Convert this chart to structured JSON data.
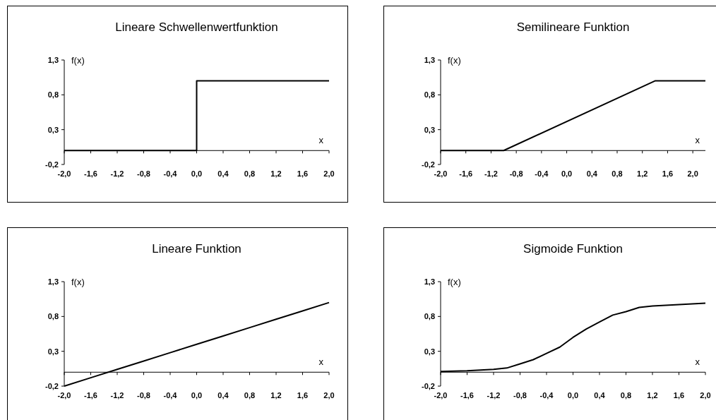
{
  "chart_data": [
    {
      "type": "line",
      "title": "Lineare Schwellenwertfunktion",
      "xlabel": "x",
      "ylabel": "f(x)",
      "xlim": [
        -2,
        2
      ],
      "ylim": [
        -0.2,
        1.3
      ],
      "xticks": [
        {
          "value": -2,
          "label": "-2,0"
        },
        {
          "value": -1.6,
          "label": "-1,6"
        },
        {
          "value": -1.2,
          "label": "-1,2"
        },
        {
          "value": -0.8,
          "label": "-0,8"
        },
        {
          "value": -0.4,
          "label": "-0,4"
        },
        {
          "value": 0,
          "label": "0,0"
        },
        {
          "value": 0.4,
          "label": "0,4"
        },
        {
          "value": 0.8,
          "label": "0,8"
        },
        {
          "value": 1.2,
          "label": "1,2"
        },
        {
          "value": 1.6,
          "label": "1,6"
        },
        {
          "value": 2,
          "label": "2,0"
        }
      ],
      "yticks": [
        {
          "value": -0.2,
          "label": "-0,2"
        },
        {
          "value": 0.3,
          "label": "0,3"
        },
        {
          "value": 0.8,
          "label": "0,8"
        },
        {
          "value": 1.3,
          "label": "1,3"
        }
      ],
      "series": [
        {
          "color": "#000000",
          "x": [
            -2,
            0,
            0,
            2
          ],
          "values": [
            0,
            0,
            1,
            1
          ]
        }
      ]
    },
    {
      "type": "line",
      "title": "Semilineare Funktion",
      "xlabel": "x",
      "ylabel": "f(x)",
      "xlim": [
        -2,
        2.2
      ],
      "ylim": [
        -0.2,
        1.3
      ],
      "xticks": [
        {
          "value": -2,
          "label": "-2,0"
        },
        {
          "value": -1.6,
          "label": "-1,6"
        },
        {
          "value": -1.2,
          "label": "-1,2"
        },
        {
          "value": -0.8,
          "label": "-0,8"
        },
        {
          "value": -0.4,
          "label": "-0,4"
        },
        {
          "value": 0,
          "label": "0,0"
        },
        {
          "value": 0.4,
          "label": "0,4"
        },
        {
          "value": 0.8,
          "label": "0,8"
        },
        {
          "value": 1.2,
          "label": "1,2"
        },
        {
          "value": 1.6,
          "label": "1,6"
        },
        {
          "value": 2,
          "label": "2,0"
        }
      ],
      "yticks": [
        {
          "value": -0.2,
          "label": "-0,2"
        },
        {
          "value": 0.3,
          "label": "0,3"
        },
        {
          "value": 0.8,
          "label": "0,8"
        },
        {
          "value": 1.3,
          "label": "1,3"
        }
      ],
      "series": [
        {
          "color": "#000000",
          "x": [
            -2,
            -1,
            1.4,
            2.2
          ],
          "values": [
            0,
            0,
            1,
            1
          ]
        }
      ]
    },
    {
      "type": "line",
      "title": "Lineare Funktion",
      "xlabel": "x",
      "ylabel": "f(x)",
      "xlim": [
        -2,
        2
      ],
      "ylim": [
        -0.2,
        1.3
      ],
      "xticks": [
        {
          "value": -2,
          "label": "-2,0"
        },
        {
          "value": -1.6,
          "label": "-1,6"
        },
        {
          "value": -1.2,
          "label": "-1,2"
        },
        {
          "value": -0.8,
          "label": "-0,8"
        },
        {
          "value": -0.4,
          "label": "-0,4"
        },
        {
          "value": 0,
          "label": "0,0"
        },
        {
          "value": 0.4,
          "label": "0,4"
        },
        {
          "value": 0.8,
          "label": "0,8"
        },
        {
          "value": 1.2,
          "label": "1,2"
        },
        {
          "value": 1.6,
          "label": "1,6"
        },
        {
          "value": 2,
          "label": "2,0"
        }
      ],
      "yticks": [
        {
          "value": -0.2,
          "label": "-0,2"
        },
        {
          "value": 0.3,
          "label": "0,3"
        },
        {
          "value": 0.8,
          "label": "0,8"
        },
        {
          "value": 1.3,
          "label": "1,3"
        }
      ],
      "series": [
        {
          "color": "#000000",
          "x": [
            -2,
            -1.6,
            -1.2,
            -0.8,
            -0.4,
            0,
            0.4,
            0.8,
            1.2,
            1.6,
            2
          ],
          "values": [
            -0.2,
            -0.08,
            0.04,
            0.16,
            0.28,
            0.4,
            0.52,
            0.64,
            0.76,
            0.88,
            1.0
          ]
        }
      ]
    },
    {
      "type": "line",
      "title": "Sigmoide Funktion",
      "xlabel": "x",
      "ylabel": "f(x)",
      "xlim": [
        -2,
        2
      ],
      "ylim": [
        -0.2,
        1.3
      ],
      "xticks": [
        {
          "value": -2,
          "label": "-2,0"
        },
        {
          "value": -1.6,
          "label": "-1,6"
        },
        {
          "value": -1.2,
          "label": "-1,2"
        },
        {
          "value": -0.8,
          "label": "-0,8"
        },
        {
          "value": -0.4,
          "label": "-0,4"
        },
        {
          "value": 0,
          "label": "0,0"
        },
        {
          "value": 0.4,
          "label": "0,4"
        },
        {
          "value": 0.8,
          "label": "0,8"
        },
        {
          "value": 1.2,
          "label": "1,2"
        },
        {
          "value": 1.6,
          "label": "1,6"
        },
        {
          "value": 2,
          "label": "2,0"
        }
      ],
      "yticks": [
        {
          "value": -0.2,
          "label": "-0,2"
        },
        {
          "value": 0.3,
          "label": "0,3"
        },
        {
          "value": 0.8,
          "label": "0,8"
        },
        {
          "value": 1.3,
          "label": "1,3"
        }
      ],
      "series": [
        {
          "color": "#000000",
          "x": [
            -2,
            -1.6,
            -1.2,
            -1,
            -0.8,
            -0.6,
            -0.4,
            -0.2,
            0,
            0.2,
            0.4,
            0.6,
            0.8,
            1,
            1.2,
            1.6,
            2
          ],
          "values": [
            0.01,
            0.02,
            0.04,
            0.06,
            0.12,
            0.18,
            0.27,
            0.36,
            0.5,
            0.62,
            0.72,
            0.82,
            0.87,
            0.93,
            0.95,
            0.97,
            0.99
          ]
        }
      ]
    }
  ]
}
